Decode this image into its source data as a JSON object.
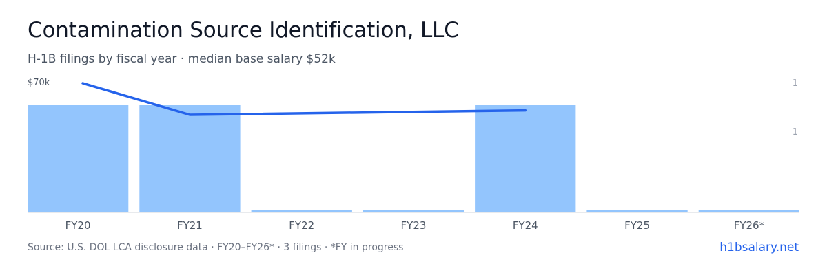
{
  "header": {
    "title": "Contamination Source Identification, LLC",
    "subtitle": "H-1B filings by fiscal year · median base salary $52k"
  },
  "footer": {
    "source": "Source: U.S. DOL LCA disclosure data · FY20–FY26* · 3 filings · *FY in progress",
    "brand": "h1bsalary.net"
  },
  "colors": {
    "bar": "#93c5fd",
    "line": "#2563eb",
    "axis": "#d1d5db",
    "tick_text": "#4b5563",
    "muted_text": "#9ca3af"
  },
  "chart_data": {
    "type": "bar",
    "categories": [
      "FY20",
      "FY21",
      "FY22",
      "FY23",
      "FY24",
      "FY25",
      "FY26*"
    ],
    "series": [
      {
        "type": "bar",
        "values": [
          1,
          1,
          0,
          0,
          1,
          0,
          0
        ],
        "axis": "right"
      },
      {
        "type": "line",
        "values": [
          70000,
          52000,
          null,
          null,
          54500,
          null,
          null
        ],
        "axis": "left"
      }
    ],
    "left_axis": {
      "tick_label": "$70k",
      "max": 70000,
      "min": 0
    },
    "right_axis": {
      "tick_labels": [
        "1",
        "1"
      ],
      "max": 1.2
    },
    "grid": false,
    "legend": "none"
  }
}
